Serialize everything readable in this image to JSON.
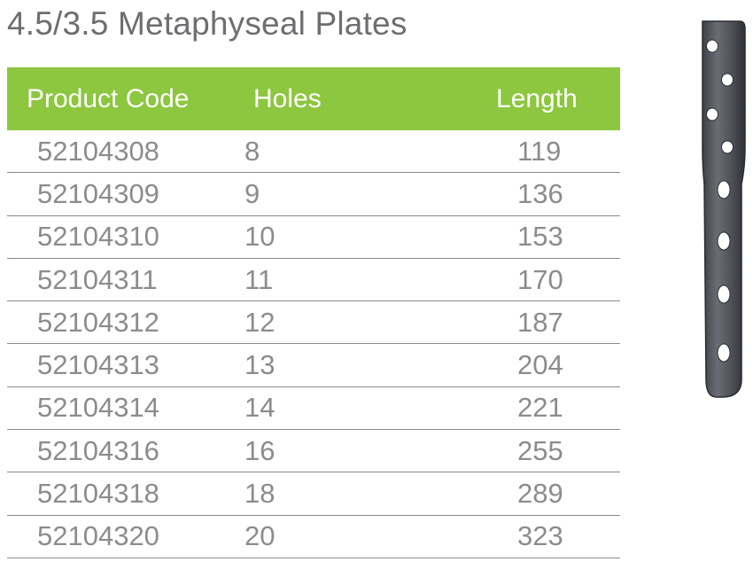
{
  "title": "4.5/3.5 Metaphyseal Plates",
  "table": {
    "headers": {
      "code": "Product Code",
      "holes": "Holes",
      "length": "Length"
    },
    "rows": [
      {
        "code": "52104308",
        "holes": "8",
        "length": "119"
      },
      {
        "code": "52104309",
        "holes": "9",
        "length": "136"
      },
      {
        "code": "52104310",
        "holes": "10",
        "length": "153"
      },
      {
        "code": "52104311",
        "holes": "11",
        "length": "170"
      },
      {
        "code": "52104312",
        "holes": "12",
        "length": "187"
      },
      {
        "code": "52104313",
        "holes": "13",
        "length": "204"
      },
      {
        "code": "52104314",
        "holes": "14",
        "length": "221"
      },
      {
        "code": "52104316",
        "holes": "16",
        "length": "255"
      },
      {
        "code": "52104318",
        "holes": "18",
        "length": "289"
      },
      {
        "code": "52104320",
        "holes": "20",
        "length": "323"
      }
    ]
  },
  "colors": {
    "header_bg": "#8dc63f",
    "header_text": "#ffffff",
    "title_text": "#6d6e71",
    "row_text": "#8c8c8c",
    "plate_metal": "#5a5d63"
  }
}
